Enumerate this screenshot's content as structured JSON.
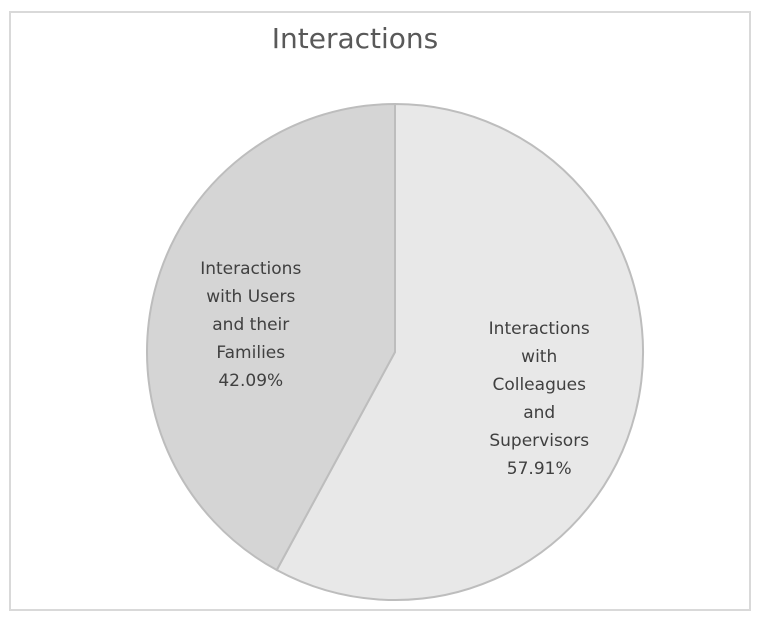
{
  "chart_data": {
    "type": "pie",
    "title": "Interactions",
    "categories": [
      "Interactions with Colleagues and Supervisors",
      "Interactions with Users and their Families"
    ],
    "values": [
      57.91,
      42.09
    ],
    "value_labels": [
      "57.91%",
      "42.09%"
    ],
    "colors": [
      "#e8e8e8",
      "#d5d5d5"
    ]
  }
}
